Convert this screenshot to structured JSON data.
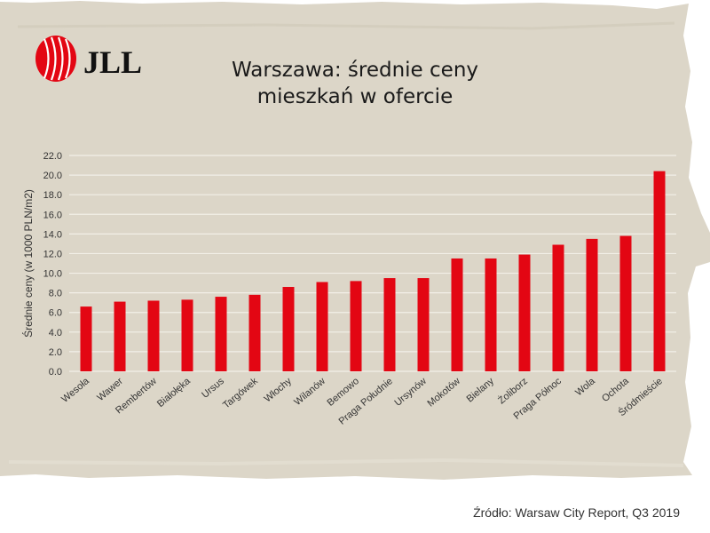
{
  "brand": {
    "name": "JLL"
  },
  "title": {
    "line1": "Warszawa: średnie ceny",
    "line2": "mieszkań w ofercie"
  },
  "source": "Źródło: Warsaw City Report, Q3 2019",
  "colors": {
    "bar": "#e30613",
    "background": "#dcd6c8",
    "grid": "#f2efe7",
    "text": "#333333"
  },
  "chart_data": {
    "type": "bar",
    "title": "Warszawa: średnie ceny mieszkań w ofercie",
    "xlabel": "",
    "ylabel": "Średnie ceny (w 1000 PLN/m2)",
    "ylim": [
      0,
      22
    ],
    "yticks": [
      "0.0",
      "2.0",
      "4.0",
      "6.0",
      "8.0",
      "10.0",
      "12.0",
      "14.0",
      "16.0",
      "18.0",
      "20.0",
      "22.0"
    ],
    "grid": true,
    "categories": [
      "Wesoła",
      "Wawer",
      "Rembertów",
      "Białołęka",
      "Ursus",
      "Targówek",
      "Włochy",
      "Wilanów",
      "Bemowo",
      "Praga Południe",
      "Ursynów",
      "Mokotów",
      "Bielany",
      "Żoliborz",
      "Praga Północ",
      "Wola",
      "Ochota",
      "Śródmieście"
    ],
    "values": [
      6.6,
      7.1,
      7.2,
      7.3,
      7.6,
      7.8,
      8.6,
      9.1,
      9.2,
      9.5,
      9.5,
      11.5,
      11.5,
      11.9,
      12.9,
      13.5,
      13.8,
      20.4
    ]
  }
}
